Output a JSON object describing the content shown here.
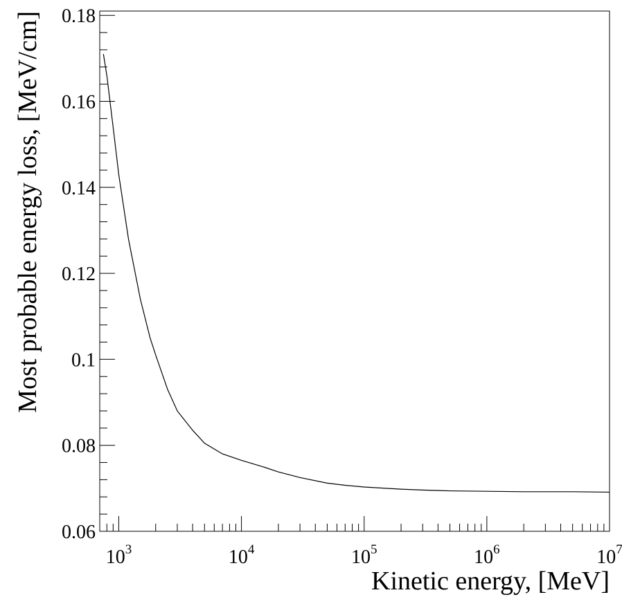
{
  "chart_data": {
    "type": "line",
    "title": "",
    "xlabel": "Kinetic energy, [MeV]",
    "ylabel": "Most probable energy loss, [MeV/cm]",
    "x_scale": "log",
    "xlim": [
      700,
      10000000
    ],
    "ylim": [
      0.06,
      0.181
    ],
    "grid": false,
    "legend": "none",
    "x_ticks": [
      {
        "value": 1000,
        "base": "10",
        "exp": "3"
      },
      {
        "value": 10000,
        "base": "10",
        "exp": "4"
      },
      {
        "value": 100000,
        "base": "10",
        "exp": "5"
      },
      {
        "value": 1000000,
        "base": "10",
        "exp": "6"
      },
      {
        "value": 10000000,
        "base": "10",
        "exp": "7"
      }
    ],
    "y_ticks": [
      {
        "value": 0.06,
        "label": "0.06"
      },
      {
        "value": 0.08,
        "label": "0.08"
      },
      {
        "value": 0.1,
        "label": "0.1"
      },
      {
        "value": 0.12,
        "label": "0.12"
      },
      {
        "value": 0.14,
        "label": "0.14"
      },
      {
        "value": 0.16,
        "label": "0.16"
      },
      {
        "value": 0.18,
        "label": "0.18"
      }
    ],
    "series": [
      {
        "color": "#000000",
        "x": [
          750,
          800,
          900,
          1000,
          1200,
          1500,
          1800,
          2000,
          2500,
          3000,
          4000,
          5000,
          7000,
          10000,
          15000,
          20000,
          30000,
          50000,
          70000,
          100000,
          200000,
          300000,
          500000,
          1000000,
          2000000,
          5000000,
          10000000
        ],
        "y": [
          0.171,
          0.166,
          0.154,
          0.143,
          0.128,
          0.114,
          0.105,
          0.101,
          0.093,
          0.088,
          0.0835,
          0.0805,
          0.078,
          0.0765,
          0.075,
          0.0738,
          0.0725,
          0.0712,
          0.0707,
          0.0703,
          0.0698,
          0.0696,
          0.0694,
          0.0693,
          0.0692,
          0.0692,
          0.0691
        ]
      }
    ]
  }
}
